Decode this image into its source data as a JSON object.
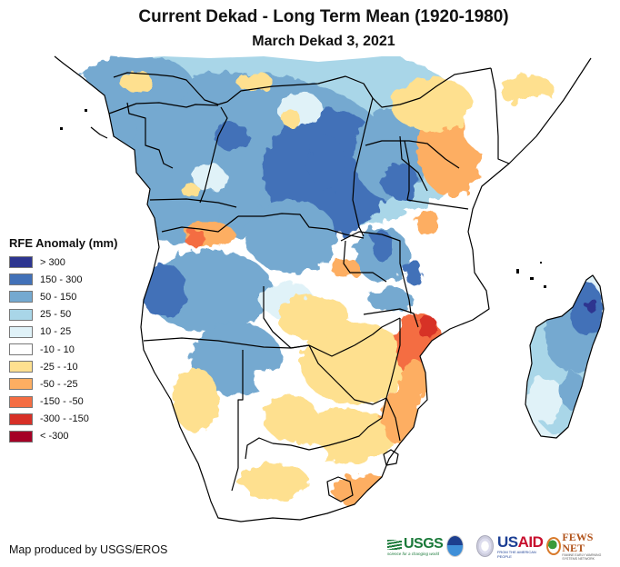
{
  "title": "Current Dekad - Long Term Mean (1920-1980)",
  "subtitle": "March Dekad 3, 2021",
  "legend": {
    "title": "RFE Anomaly (mm)",
    "items": [
      {
        "label": "> 300",
        "color": "#2d3590"
      },
      {
        "label": "150 - 300",
        "color": "#4271b8"
      },
      {
        "label": "50 - 150",
        "color": "#74a9d0"
      },
      {
        "label": "25 - 50",
        "color": "#a9d6e8"
      },
      {
        "label": "10 - 25",
        "color": "#e0f2f8"
      },
      {
        "label": "-10 - 10",
        "color": "#ffffff"
      },
      {
        "label": "-25 - -10",
        "color": "#fee08f"
      },
      {
        "label": "-50 - -25",
        "color": "#fdae62"
      },
      {
        "label": "-150 - -50",
        "color": "#f46d43"
      },
      {
        "label": "-300 - -150",
        "color": "#d73027"
      },
      {
        "label": "< -300",
        "color": "#a50026"
      }
    ]
  },
  "credit": "Map produced by USGS/EROS",
  "logos": {
    "usgs": "USGS",
    "usgs_tagline": "science for a changing world",
    "noaa": "NOAA",
    "usaid_us": "US",
    "usaid_aid": "AID",
    "usaid_tagline": "FROM THE AMERICAN PEOPLE",
    "fews": "FEWS NET",
    "fews_tagline": "FAMINE EARLY WARNING SYSTEMS NETWORK"
  },
  "map_regions": [
    {
      "name": "central-africa",
      "anomaly_class": "50 - 150"
    },
    {
      "name": "congo-basin-core",
      "anomaly_class": "150 - 300"
    },
    {
      "name": "angola-north",
      "anomaly_class": "-50 - -25"
    },
    {
      "name": "angola-south",
      "anomaly_class": "50 - 150"
    },
    {
      "name": "kenya",
      "anomaly_class": "-50 - -25"
    },
    {
      "name": "somalia",
      "anomaly_class": "-10 - 10"
    },
    {
      "name": "mozambique-coast",
      "anomaly_class": "-150 - -50"
    },
    {
      "name": "south-africa",
      "anomaly_class": "-25 - -10"
    },
    {
      "name": "madagascar",
      "anomaly_class": "50 - 150"
    }
  ]
}
